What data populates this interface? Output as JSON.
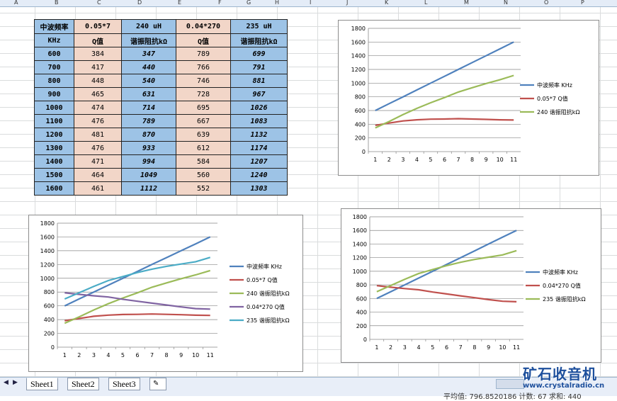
{
  "column_headers": [
    "A",
    "B",
    "C",
    "D",
    "E",
    "F",
    "G",
    "H",
    "I",
    "J",
    "K",
    "L",
    "M",
    "N",
    "O",
    "P"
  ],
  "table": {
    "header1": [
      "中波频率",
      "0.05*7",
      "240 uH",
      "0.04*270",
      "235 uH"
    ],
    "header2": [
      "KHz",
      "Q值",
      "谐振阻抗kΩ",
      "Q值",
      "谐振阻抗kΩ"
    ],
    "rows": [
      [
        "600",
        "384",
        "347",
        "789",
        "699"
      ],
      [
        "700",
        "417",
        "440",
        "766",
        "791"
      ],
      [
        "800",
        "448",
        "540",
        "746",
        "881"
      ],
      [
        "900",
        "465",
        "631",
        "728",
        "967"
      ],
      [
        "1000",
        "474",
        "714",
        "695",
        "1026"
      ],
      [
        "1100",
        "476",
        "789",
        "667",
        "1083"
      ],
      [
        "1200",
        "481",
        "870",
        "639",
        "1132"
      ],
      [
        "1300",
        "476",
        "933",
        "612",
        "1174"
      ],
      [
        "1400",
        "471",
        "994",
        "584",
        "1207"
      ],
      [
        "1500",
        "464",
        "1049",
        "560",
        "1240"
      ],
      [
        "1600",
        "461",
        "1112",
        "552",
        "1303"
      ]
    ]
  },
  "chart_data": [
    {
      "type": "line",
      "categories": [
        1,
        2,
        3,
        4,
        5,
        6,
        7,
        8,
        9,
        10,
        11
      ],
      "ylim": [
        0,
        1800
      ],
      "yticks": [
        0,
        200,
        400,
        600,
        800,
        1000,
        1200,
        1400,
        1600,
        1800
      ],
      "grid": true,
      "legend": "right",
      "series": [
        {
          "name": "中波频率 KHz",
          "color": "#4f81bd",
          "values": [
            600,
            700,
            800,
            900,
            1000,
            1100,
            1200,
            1300,
            1400,
            1500,
            1600
          ]
        },
        {
          "name": "0.05*7 Q值",
          "color": "#c0504d",
          "values": [
            384,
            417,
            448,
            465,
            474,
            476,
            481,
            476,
            471,
            464,
            461
          ]
        },
        {
          "name": "240 谐振阻抗kΩ",
          "color": "#9bbb59",
          "values": [
            347,
            440,
            540,
            631,
            714,
            789,
            870,
            933,
            994,
            1049,
            1112
          ]
        }
      ]
    },
    {
      "type": "line",
      "categories": [
        1,
        2,
        3,
        4,
        5,
        6,
        7,
        8,
        9,
        10,
        11
      ],
      "ylim": [
        0,
        1800
      ],
      "yticks": [
        0,
        200,
        400,
        600,
        800,
        1000,
        1200,
        1400,
        1600,
        1800
      ],
      "grid": true,
      "legend": "right",
      "series": [
        {
          "name": "中波频率 KHz",
          "color": "#4f81bd",
          "values": [
            600,
            700,
            800,
            900,
            1000,
            1100,
            1200,
            1300,
            1400,
            1500,
            1600
          ]
        },
        {
          "name": "0.05*7 Q值",
          "color": "#c0504d",
          "values": [
            384,
            417,
            448,
            465,
            474,
            476,
            481,
            476,
            471,
            464,
            461
          ]
        },
        {
          "name": "240 谐振阻抗kΩ",
          "color": "#9bbb59",
          "values": [
            347,
            440,
            540,
            631,
            714,
            789,
            870,
            933,
            994,
            1049,
            1112
          ]
        },
        {
          "name": "0.04*270 Q值",
          "color": "#8064a2",
          "values": [
            789,
            766,
            746,
            728,
            695,
            667,
            639,
            612,
            584,
            560,
            552
          ]
        },
        {
          "name": "235 谐振阻抗kΩ",
          "color": "#4bacc6",
          "values": [
            699,
            791,
            881,
            967,
            1026,
            1083,
            1132,
            1174,
            1207,
            1240,
            1303
          ]
        }
      ]
    },
    {
      "type": "line",
      "categories": [
        1,
        2,
        3,
        4,
        5,
        6,
        7,
        8,
        9,
        10,
        11
      ],
      "ylim": [
        0,
        1800
      ],
      "yticks": [
        0,
        200,
        400,
        600,
        800,
        1000,
        1200,
        1400,
        1600,
        1800
      ],
      "grid": true,
      "legend": "right",
      "series": [
        {
          "name": "中波频率 KHz",
          "color": "#4f81bd",
          "values": [
            600,
            700,
            800,
            900,
            1000,
            1100,
            1200,
            1300,
            1400,
            1500,
            1600
          ]
        },
        {
          "name": "0.04*270 Q值",
          "color": "#c0504d",
          "values": [
            789,
            766,
            746,
            728,
            695,
            667,
            639,
            612,
            584,
            560,
            552
          ]
        },
        {
          "name": "235 谐振阻抗kΩ",
          "color": "#9bbb59",
          "values": [
            699,
            791,
            881,
            967,
            1026,
            1083,
            1132,
            1174,
            1207,
            1240,
            1303
          ]
        }
      ]
    }
  ],
  "sheets": {
    "tabs": [
      "Sheet1",
      "Sheet2",
      "Sheet3"
    ],
    "active": "Sheet1",
    "insert_icon": "insert-sheet-icon"
  },
  "status": {
    "text": "平均值: 796.8520186   计数: 67   求和: 440"
  },
  "watermark": {
    "title": "矿石收音机",
    "url": "www.crystalradio.cn"
  }
}
